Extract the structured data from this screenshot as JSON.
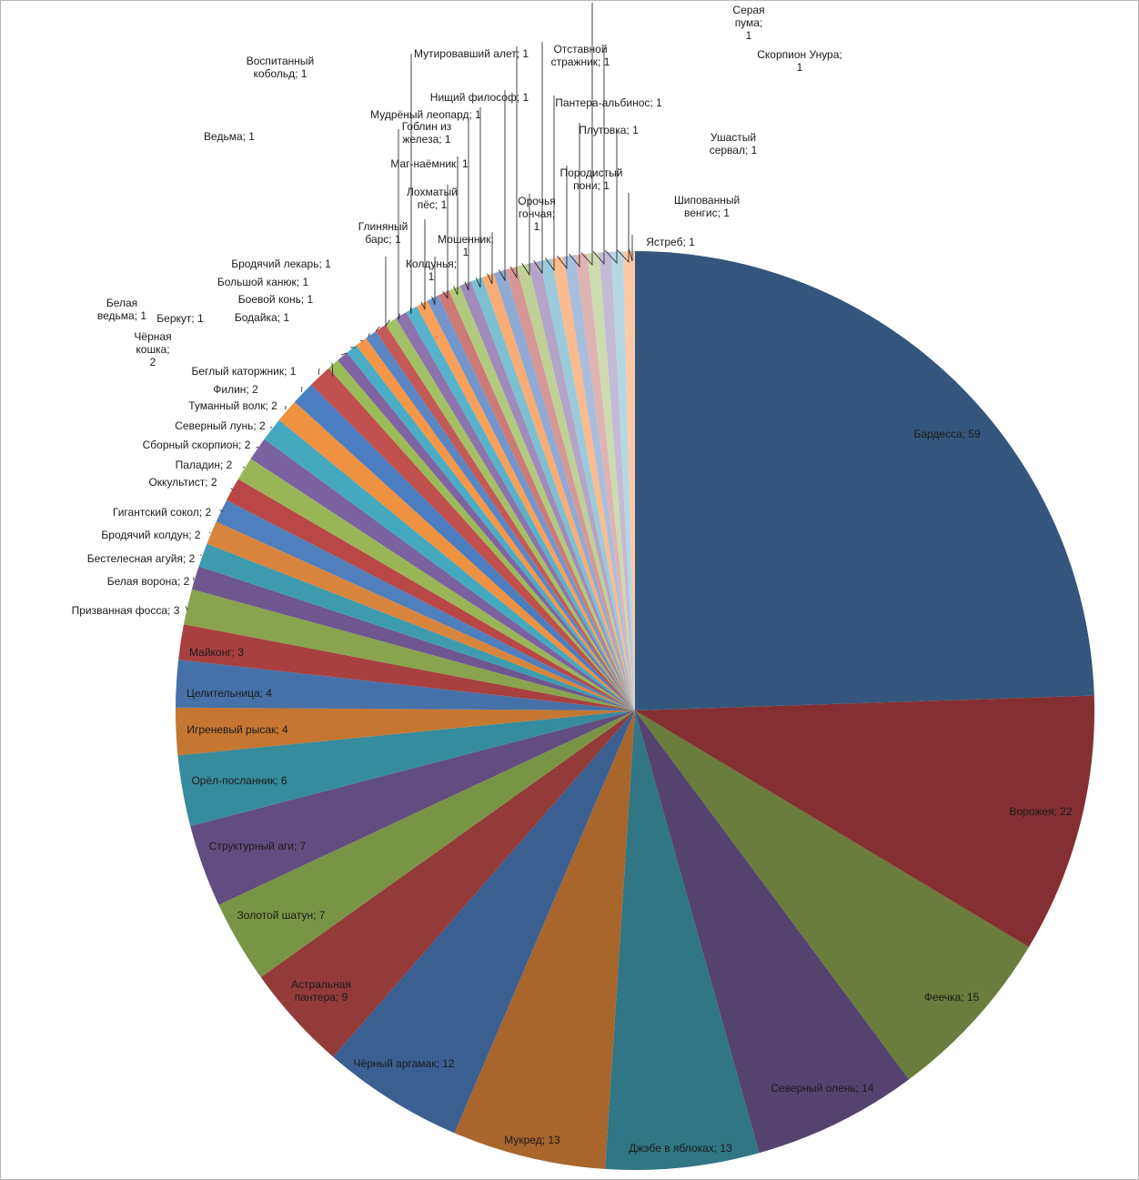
{
  "chart_data": {
    "type": "pie",
    "title": "",
    "legend": "none",
    "slices": [
      {
        "label": "Бардесса",
        "value": 59,
        "color": "#34567c",
        "display": "Бардесса; 59"
      },
      {
        "label": "Ворожея",
        "value": 22,
        "color": "#843032",
        "display": "Ворожея; 22"
      },
      {
        "label": "Феечка",
        "value": 15,
        "color": "#6a7d3c",
        "display": "Феечка; 15"
      },
      {
        "label": "Северный олень",
        "value": 14,
        "color": "#54426f",
        "display": "Северный олень; 14"
      },
      {
        "label": "Джэбе в яблоках",
        "value": 13,
        "color": "#307685",
        "display": "Джэбе в яблоках; 13"
      },
      {
        "label": "Мукред",
        "value": 13,
        "color": "#a8652c",
        "display": "Мукред; 13"
      },
      {
        "label": "Чёрный аргамак",
        "value": 12,
        "color": "#3b5f91",
        "display": "Чёрный аргамак; 12"
      },
      {
        "label": "Астральная пантера",
        "value": 9,
        "color": "#933b39",
        "display": "Астральная\nпантера; 9"
      },
      {
        "label": "Золотой шатун",
        "value": 7,
        "color": "#7a9446",
        "display": "Золотой шатун; 7"
      },
      {
        "label": "Структурный аги",
        "value": 7,
        "color": "#624d80",
        "display": "Структурный аги; 7"
      },
      {
        "label": "Орёл-посланник",
        "value": 6,
        "color": "#368b9c",
        "display": "Орёл-посланник; 6"
      },
      {
        "label": "Игреневый рысак",
        "value": 4,
        "color": "#c57631",
        "display": "Игреневый рысак; 4"
      },
      {
        "label": "Целительница",
        "value": 4,
        "color": "#4671a8",
        "display": "Целительница; 4"
      },
      {
        "label": "Майконг",
        "value": 3,
        "color": "#a8403f",
        "display": "Майконг; 3"
      },
      {
        "label": "Призванная фосса",
        "value": 3,
        "color": "#8aa34f",
        "display": "Призванная фосса; 3"
      },
      {
        "label": "Белая ворона",
        "value": 2,
        "color": "#6d578e",
        "display": "Белая ворона; 2"
      },
      {
        "label": "Бестелесная агуйя",
        "value": 2,
        "color": "#3e9bae",
        "display": "Бестелесная агуйя; 2"
      },
      {
        "label": "Бродячий колдун",
        "value": 2,
        "color": "#d9843c",
        "display": "Бродячий колдун; 2"
      },
      {
        "label": "Гигантский сокол",
        "value": 2,
        "color": "#4f7fbd",
        "display": "Гигантский сокол; 2"
      },
      {
        "label": "Оккультист",
        "value": 2,
        "color": "#b94745",
        "display": "Оккультист; 2"
      },
      {
        "label": "Паладин",
        "value": 2,
        "color": "#9ab558",
        "display": "Паладин; 2"
      },
      {
        "label": "Сборный скорпион",
        "value": 2,
        "color": "#7a62a0",
        "display": "Сборный скорпион; 2"
      },
      {
        "label": "Северный лунь",
        "value": 2,
        "color": "#44a9bf",
        "display": "Северный лунь; 2"
      },
      {
        "label": "Туманный волк",
        "value": 2,
        "color": "#ee9140",
        "display": "Туманный волк; 2"
      },
      {
        "label": "Филин",
        "value": 2,
        "color": "#4b7ec0",
        "display": "Филин; 2"
      },
      {
        "label": "Чёрная кошка",
        "value": 2,
        "color": "#c0504d",
        "display": "Чёрная\nкошка;\n2"
      },
      {
        "label": "Беглый каторжник",
        "value": 1,
        "color": "#9bbb59",
        "display": "Беглый каторжник; 1"
      },
      {
        "label": "Бодайка",
        "value": 1,
        "color": "#8064a2",
        "display": "Бодайка; 1"
      },
      {
        "label": "Беркут",
        "value": 1,
        "color": "#4bacc6",
        "display": "Беркут; 1"
      },
      {
        "label": "Белая ведьма",
        "value": 1,
        "color": "#f79646",
        "display": "Белая\nведьма; 1"
      },
      {
        "label": "Боевой конь",
        "value": 1,
        "color": "#5a86c4",
        "display": "Боевой конь; 1"
      },
      {
        "label": "Большой канюк",
        "value": 1,
        "color": "#c35a58",
        "display": "Большой канюк; 1"
      },
      {
        "label": "Бродячий лекарь",
        "value": 1,
        "color": "#a3c164",
        "display": "Бродячий лекарь; 1"
      },
      {
        "label": "Ведьма",
        "value": 1,
        "color": "#8d73ab",
        "display": "Ведьма; 1"
      },
      {
        "label": "Воспитанный кобольд",
        "value": 1,
        "color": "#57b3cb",
        "display": "Воспитанный\nкобольд; 1"
      },
      {
        "label": "Глиняный барс",
        "value": 1,
        "color": "#f8a05a",
        "display": "Глиняный\nбарс; 1"
      },
      {
        "label": "Колдунья",
        "value": 1,
        "color": "#7296cc",
        "display": "Колдунья;\n1"
      },
      {
        "label": "Лохматый пёс",
        "value": 1,
        "color": "#cb7a78",
        "display": "Лохматый\nпёс; 1"
      },
      {
        "label": "Маг-наёмник",
        "value": 1,
        "color": "#b2ca7e",
        "display": "Маг-наёмник; 1"
      },
      {
        "label": "Гоблин из железа",
        "value": 1,
        "color": "#a08bbb",
        "display": "Гоблин из\nжелеза; 1"
      },
      {
        "label": "Мудрёный леопард",
        "value": 1,
        "color": "#7cc0d2",
        "display": "Мудрёный леопард; 1"
      },
      {
        "label": "Мошенник",
        "value": 1,
        "color": "#f9ad74",
        "display": "Мошенник;\n1"
      },
      {
        "label": "Нищий философ",
        "value": 1,
        "color": "#8faad4",
        "display": "Нищий философ; 1"
      },
      {
        "label": "Мутировавший алет",
        "value": 1,
        "color": "#d59896",
        "display": "Мутировавший алет; 1"
      },
      {
        "label": "Орочья гончая",
        "value": 1,
        "color": "#bfd196",
        "display": "Орочья\nгончая;\n1"
      },
      {
        "label": "Отставной стражник",
        "value": 1,
        "color": "#b3a4c8",
        "display": "Отставной\nстражник; 1"
      },
      {
        "label": "Пантера-альбинос",
        "value": 1,
        "color": "#9bcbda",
        "display": "Пантера-альбинос; 1"
      },
      {
        "label": "Породистый пони",
        "value": 1,
        "color": "#fbbb8e",
        "display": "Породистый\nпони; 1"
      },
      {
        "label": "Плутовка",
        "value": 1,
        "color": "#a9bddd",
        "display": "Плутовка; 1"
      },
      {
        "label": "Серая пума",
        "value": 1,
        "color": "#dfb3b2",
        "display": "Серая\nпума;\n1"
      },
      {
        "label": "Скорпион Унура",
        "value": 1,
        "color": "#cddbb0",
        "display": "Скорпион Унура;\n1"
      },
      {
        "label": "Ушастый сервал",
        "value": 1,
        "color": "#c4b9d6",
        "display": "Ушастый\nсервал; 1"
      },
      {
        "label": "Шипованный венгис",
        "value": 1,
        "color": "#b5d7e3",
        "display": "Шипованный\nвенгис; 1"
      },
      {
        "label": "Ястреб",
        "value": 1,
        "color": "#fcc9a6",
        "display": "Ястреб; 1"
      }
    ]
  }
}
